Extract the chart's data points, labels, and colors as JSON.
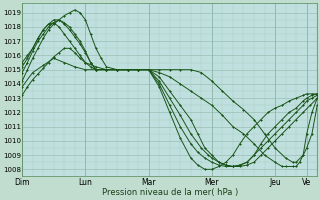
{
  "background_color": "#c0ddd0",
  "plot_bg_color": "#c0e0e0",
  "grid_color_major": "#90b8a8",
  "grid_color_minor": "#a8ccc0",
  "line_color": "#1a5518",
  "xlabel": "Pression niveau de la mer( hPa )",
  "ylim": [
    1007.5,
    1019.7
  ],
  "yticks": [
    1008,
    1009,
    1010,
    1011,
    1012,
    1013,
    1014,
    1015,
    1016,
    1017,
    1018,
    1019
  ],
  "xtick_labels": [
    "Dim",
    "Lun",
    "Mar",
    "Mer",
    "Jeu",
    "Ve"
  ],
  "xtick_positions": [
    0,
    36,
    72,
    108,
    144,
    162
  ],
  "xlim": [
    0,
    168
  ],
  "series": [
    {
      "name": "s1_low_flat",
      "points": [
        [
          0,
          1013.2
        ],
        [
          3,
          1013.8
        ],
        [
          6,
          1014.3
        ],
        [
          9,
          1014.7
        ],
        [
          12,
          1015.1
        ],
        [
          15,
          1015.5
        ],
        [
          18,
          1015.9
        ],
        [
          21,
          1016.2
        ],
        [
          24,
          1016.5
        ],
        [
          27,
          1016.5
        ],
        [
          30,
          1016.2
        ],
        [
          33,
          1015.8
        ],
        [
          36,
          1015.5
        ],
        [
          42,
          1015.2
        ],
        [
          48,
          1015.0
        ],
        [
          54,
          1015.0
        ],
        [
          60,
          1015.0
        ],
        [
          66,
          1015.0
        ],
        [
          72,
          1015.0
        ],
        [
          78,
          1015.0
        ],
        [
          84,
          1015.0
        ],
        [
          90,
          1015.0
        ],
        [
          96,
          1015.0
        ],
        [
          102,
          1014.8
        ],
        [
          108,
          1014.2
        ],
        [
          114,
          1013.5
        ],
        [
          120,
          1012.8
        ],
        [
          126,
          1012.2
        ],
        [
          132,
          1011.5
        ],
        [
          138,
          1010.5
        ],
        [
          144,
          1009.5
        ],
        [
          150,
          1008.8
        ],
        [
          154,
          1008.5
        ],
        [
          156,
          1008.5
        ],
        [
          160,
          1009.0
        ],
        [
          162,
          1009.5
        ],
        [
          165,
          1010.5
        ],
        [
          168,
          1012.5
        ]
      ]
    },
    {
      "name": "s2_low_flat2",
      "points": [
        [
          0,
          1013.8
        ],
        [
          6,
          1014.8
        ],
        [
          12,
          1015.3
        ],
        [
          18,
          1015.8
        ],
        [
          24,
          1015.5
        ],
        [
          30,
          1015.2
        ],
        [
          36,
          1015.0
        ],
        [
          42,
          1015.0
        ],
        [
          48,
          1015.0
        ],
        [
          54,
          1015.0
        ],
        [
          60,
          1015.0
        ],
        [
          66,
          1015.0
        ],
        [
          72,
          1015.0
        ],
        [
          78,
          1014.8
        ],
        [
          84,
          1014.5
        ],
        [
          90,
          1014.0
        ],
        [
          96,
          1013.5
        ],
        [
          102,
          1013.0
        ],
        [
          108,
          1012.5
        ],
        [
          114,
          1011.8
        ],
        [
          120,
          1011.0
        ],
        [
          126,
          1010.5
        ],
        [
          132,
          1009.8
        ],
        [
          138,
          1009.0
        ],
        [
          144,
          1008.5
        ],
        [
          148,
          1008.2
        ],
        [
          150,
          1008.2
        ],
        [
          154,
          1008.2
        ],
        [
          156,
          1008.2
        ],
        [
          158,
          1008.5
        ],
        [
          160,
          1009.0
        ],
        [
          162,
          1010.5
        ],
        [
          165,
          1012.0
        ],
        [
          168,
          1013.0
        ]
      ]
    },
    {
      "name": "s3_high_peak",
      "points": [
        [
          0,
          1014.2
        ],
        [
          3,
          1015.0
        ],
        [
          6,
          1015.8
        ],
        [
          9,
          1016.5
        ],
        [
          12,
          1017.2
        ],
        [
          15,
          1017.8
        ],
        [
          18,
          1018.2
        ],
        [
          21,
          1018.5
        ],
        [
          24,
          1018.8
        ],
        [
          27,
          1019.0
        ],
        [
          30,
          1019.2
        ],
        [
          33,
          1019.0
        ],
        [
          36,
          1018.5
        ],
        [
          39,
          1017.5
        ],
        [
          42,
          1016.5
        ],
        [
          45,
          1015.8
        ],
        [
          48,
          1015.2
        ],
        [
          54,
          1015.0
        ],
        [
          60,
          1015.0
        ],
        [
          66,
          1015.0
        ],
        [
          72,
          1015.0
        ],
        [
          78,
          1014.5
        ],
        [
          84,
          1013.5
        ],
        [
          90,
          1012.5
        ],
        [
          96,
          1011.5
        ],
        [
          100,
          1010.5
        ],
        [
          104,
          1009.5
        ],
        [
          108,
          1009.0
        ],
        [
          112,
          1008.5
        ],
        [
          116,
          1008.3
        ],
        [
          120,
          1008.2
        ],
        [
          124,
          1008.2
        ],
        [
          128,
          1008.3
        ],
        [
          132,
          1008.5
        ],
        [
          136,
          1009.0
        ],
        [
          140,
          1009.5
        ],
        [
          144,
          1010.0
        ],
        [
          148,
          1010.5
        ],
        [
          152,
          1011.0
        ],
        [
          156,
          1011.5
        ],
        [
          160,
          1012.0
        ],
        [
          164,
          1012.5
        ],
        [
          168,
          1013.0
        ]
      ]
    },
    {
      "name": "s4_med_peak",
      "points": [
        [
          0,
          1014.8
        ],
        [
          3,
          1015.5
        ],
        [
          6,
          1016.3
        ],
        [
          9,
          1017.0
        ],
        [
          12,
          1017.5
        ],
        [
          15,
          1018.0
        ],
        [
          18,
          1018.3
        ],
        [
          21,
          1018.5
        ],
        [
          24,
          1018.3
        ],
        [
          27,
          1018.0
        ],
        [
          30,
          1017.5
        ],
        [
          33,
          1017.0
        ],
        [
          36,
          1016.3
        ],
        [
          39,
          1015.5
        ],
        [
          42,
          1015.0
        ],
        [
          48,
          1015.0
        ],
        [
          54,
          1015.0
        ],
        [
          60,
          1015.0
        ],
        [
          66,
          1015.0
        ],
        [
          72,
          1015.0
        ],
        [
          78,
          1014.2
        ],
        [
          84,
          1013.0
        ],
        [
          90,
          1011.8
        ],
        [
          96,
          1010.5
        ],
        [
          102,
          1009.5
        ],
        [
          106,
          1009.0
        ],
        [
          108,
          1008.8
        ],
        [
          112,
          1008.5
        ],
        [
          116,
          1008.3
        ],
        [
          120,
          1008.2
        ],
        [
          124,
          1008.3
        ],
        [
          128,
          1008.5
        ],
        [
          132,
          1009.0
        ],
        [
          136,
          1009.5
        ],
        [
          140,
          1010.0
        ],
        [
          144,
          1010.5
        ],
        [
          148,
          1011.0
        ],
        [
          152,
          1011.5
        ],
        [
          156,
          1012.0
        ],
        [
          160,
          1012.5
        ],
        [
          162,
          1012.8
        ],
        [
          165,
          1013.0
        ],
        [
          168,
          1013.2
        ]
      ]
    },
    {
      "name": "s5_med_peak2",
      "points": [
        [
          0,
          1015.2
        ],
        [
          3,
          1015.8
        ],
        [
          6,
          1016.5
        ],
        [
          9,
          1017.2
        ],
        [
          12,
          1017.8
        ],
        [
          15,
          1018.2
        ],
        [
          18,
          1018.5
        ],
        [
          21,
          1018.5
        ],
        [
          24,
          1018.2
        ],
        [
          27,
          1017.8
        ],
        [
          30,
          1017.3
        ],
        [
          33,
          1016.8
        ],
        [
          36,
          1016.2
        ],
        [
          39,
          1015.5
        ],
        [
          42,
          1015.0
        ],
        [
          48,
          1015.0
        ],
        [
          54,
          1015.0
        ],
        [
          60,
          1015.0
        ],
        [
          66,
          1015.0
        ],
        [
          72,
          1015.0
        ],
        [
          78,
          1014.0
        ],
        [
          84,
          1012.5
        ],
        [
          90,
          1011.0
        ],
        [
          96,
          1009.8
        ],
        [
          100,
          1009.2
        ],
        [
          104,
          1008.8
        ],
        [
          108,
          1008.5
        ],
        [
          112,
          1008.3
        ],
        [
          116,
          1008.2
        ],
        [
          120,
          1008.2
        ],
        [
          124,
          1008.3
        ],
        [
          128,
          1008.5
        ],
        [
          132,
          1009.0
        ],
        [
          136,
          1009.8
        ],
        [
          140,
          1010.5
        ],
        [
          144,
          1011.0
        ],
        [
          148,
          1011.5
        ],
        [
          152,
          1012.0
        ],
        [
          156,
          1012.3
        ],
        [
          160,
          1012.8
        ],
        [
          162,
          1013.0
        ],
        [
          165,
          1013.2
        ],
        [
          168,
          1013.3
        ]
      ]
    },
    {
      "name": "s6_sharp_peak",
      "points": [
        [
          0,
          1015.5
        ],
        [
          3,
          1016.0
        ],
        [
          6,
          1016.5
        ],
        [
          9,
          1017.2
        ],
        [
          12,
          1017.8
        ],
        [
          15,
          1018.2
        ],
        [
          18,
          1018.3
        ],
        [
          21,
          1018.0
        ],
        [
          24,
          1017.5
        ],
        [
          27,
          1017.0
        ],
        [
          30,
          1016.5
        ],
        [
          33,
          1016.0
        ],
        [
          36,
          1015.5
        ],
        [
          39,
          1015.2
        ],
        [
          42,
          1015.0
        ],
        [
          48,
          1015.0
        ],
        [
          54,
          1015.0
        ],
        [
          60,
          1015.0
        ],
        [
          66,
          1015.0
        ],
        [
          72,
          1015.0
        ],
        [
          78,
          1013.8
        ],
        [
          84,
          1012.0
        ],
        [
          90,
          1010.2
        ],
        [
          96,
          1008.8
        ],
        [
          100,
          1008.3
        ],
        [
          104,
          1008.0
        ],
        [
          108,
          1008.0
        ],
        [
          112,
          1008.2
        ],
        [
          116,
          1008.5
        ],
        [
          120,
          1009.0
        ],
        [
          124,
          1009.8
        ],
        [
          128,
          1010.5
        ],
        [
          132,
          1011.0
        ],
        [
          136,
          1011.5
        ],
        [
          140,
          1012.0
        ],
        [
          144,
          1012.3
        ],
        [
          148,
          1012.5
        ],
        [
          152,
          1012.8
        ],
        [
          156,
          1013.0
        ],
        [
          160,
          1013.2
        ],
        [
          162,
          1013.3
        ],
        [
          165,
          1013.3
        ],
        [
          168,
          1013.3
        ]
      ]
    }
  ]
}
